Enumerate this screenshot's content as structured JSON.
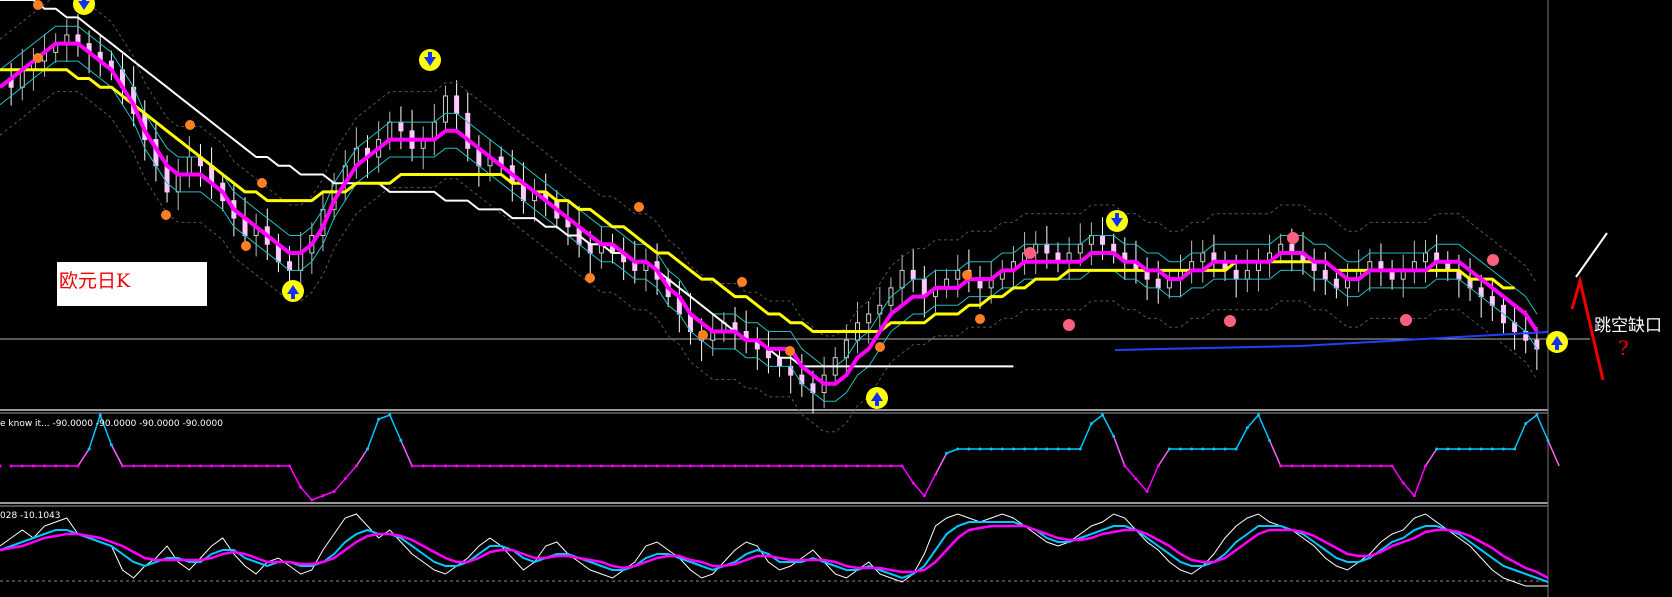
{
  "chart_data": {
    "type": "line",
    "x_count": 140,
    "annotations": {
      "label_box": "欧元日K",
      "gap_label": "跳空缺口",
      "question": "?"
    },
    "subpanel1": {
      "label": "e know it... -90.0000 -90.0000 -90.0000 -90.0000",
      "levels": [
        [
          1,
          -0.2
        ],
        [
          7,
          -0.2
        ],
        [
          8,
          0.2
        ],
        [
          9,
          1
        ],
        [
          10,
          0.3
        ],
        [
          11,
          -0.2
        ],
        [
          26,
          -0.2
        ],
        [
          27,
          -0.7
        ],
        [
          28,
          -1
        ],
        [
          30,
          -0.8
        ],
        [
          31,
          -0.5
        ],
        [
          32,
          -0.2
        ],
        [
          33,
          0.2
        ],
        [
          34,
          0.9
        ],
        [
          35,
          1
        ],
        [
          36,
          0.4
        ],
        [
          37,
          -0.2
        ],
        [
          81,
          -0.2
        ],
        [
          82,
          -0.6
        ],
        [
          83,
          -0.9
        ],
        [
          84,
          -0.4
        ],
        [
          85,
          0.1
        ],
        [
          86,
          0.2
        ],
        [
          97,
          0.2
        ],
        [
          98,
          0.8
        ],
        [
          99,
          1
        ],
        [
          100,
          0.5
        ],
        [
          101,
          -0.2
        ],
        [
          102,
          -0.5
        ],
        [
          103,
          -0.8
        ],
        [
          104,
          -0.2
        ],
        [
          105,
          0.2
        ],
        [
          111,
          0.2
        ],
        [
          112,
          0.7
        ],
        [
          113,
          1
        ],
        [
          114,
          0.4
        ],
        [
          115,
          -0.2
        ],
        [
          125,
          -0.2
        ],
        [
          126,
          -0.6
        ],
        [
          127,
          -0.9
        ],
        [
          128,
          -0.2
        ],
        [
          129,
          0.2
        ],
        [
          136,
          0.2
        ],
        [
          137,
          0.8
        ],
        [
          138,
          1
        ],
        [
          139,
          0.4
        ],
        [
          140,
          -0.2
        ]
      ]
    },
    "subpanel2": {
      "label": "028 -10.1043",
      "series": [
        {
          "values": [
            0.1,
            0.3,
            0.5,
            0.3,
            0.6,
            0.7,
            0.8,
            0.4,
            0.3,
            0.2,
            0.1,
            -0.5,
            -0.7,
            -0.4,
            -0.2,
            0.1,
            -0.3,
            -0.5,
            -0.2,
            0.1,
            0.3,
            -0.1,
            -0.4,
            -0.6,
            -0.3,
            -0.2,
            -0.4,
            -0.6,
            -0.5,
            0.0,
            0.4,
            0.8,
            0.9,
            0.6,
            0.3,
            0.5,
            0.2,
            -0.1,
            -0.3,
            -0.5,
            -0.6,
            -0.4,
            -0.2,
            0.1,
            0.3,
            0.1,
            -0.2,
            -0.5,
            -0.3,
            0.1,
            0.2,
            -0.1,
            -0.3,
            -0.5,
            -0.6,
            -0.7,
            -0.5,
            -0.3,
            0.1,
            0.2,
            0.0,
            -0.2,
            -0.5,
            -0.7,
            -0.6,
            -0.3,
            0.0,
            0.2,
            0.1,
            -0.3,
            -0.5,
            -0.4,
            -0.2,
            0.0,
            -0.3,
            -0.6,
            -0.7,
            -0.5,
            -0.3,
            -0.6,
            -0.7,
            -0.8,
            -0.6,
            -0.1,
            0.6,
            0.8,
            0.9,
            0.8,
            0.7,
            0.8,
            0.9,
            0.8,
            0.6,
            0.4,
            0.2,
            0.1,
            0.2,
            0.4,
            0.6,
            0.7,
            0.9,
            0.8,
            0.5,
            0.2,
            0.0,
            -0.3,
            -0.5,
            -0.6,
            -0.4,
            -0.1,
            0.3,
            0.6,
            0.8,
            0.9,
            0.7,
            0.6,
            0.5,
            0.3,
            0.1,
            -0.2,
            -0.4,
            -0.5,
            -0.3,
            -0.1,
            0.2,
            0.4,
            0.5,
            0.8,
            0.9,
            0.7,
            0.5,
            0.3,
            0.1,
            -0.2,
            -0.5,
            -0.7,
            -0.8,
            -0.9,
            -0.9,
            -0.9
          ]
        },
        {
          "values": [
            0.0,
            0.1,
            0.2,
            0.3,
            0.4,
            0.5,
            0.5,
            0.4,
            0.3,
            0.2,
            0.1,
            -0.1,
            -0.3,
            -0.4,
            -0.3,
            -0.2,
            -0.2,
            -0.3,
            -0.3,
            -0.1,
            0.0,
            0.0,
            -0.2,
            -0.3,
            -0.4,
            -0.3,
            -0.3,
            -0.4,
            -0.4,
            -0.3,
            -0.1,
            0.2,
            0.4,
            0.5,
            0.4,
            0.4,
            0.3,
            0.1,
            -0.1,
            -0.3,
            -0.4,
            -0.4,
            -0.3,
            -0.1,
            0.1,
            0.1,
            0.0,
            -0.2,
            -0.3,
            -0.2,
            -0.1,
            -0.1,
            -0.2,
            -0.3,
            -0.4,
            -0.5,
            -0.5,
            -0.4,
            -0.2,
            -0.1,
            -0.1,
            -0.2,
            -0.3,
            -0.4,
            -0.5,
            -0.4,
            -0.3,
            -0.1,
            0.0,
            -0.1,
            -0.3,
            -0.3,
            -0.3,
            -0.2,
            -0.3,
            -0.4,
            -0.5,
            -0.5,
            -0.4,
            -0.5,
            -0.6,
            -0.7,
            -0.6,
            -0.4,
            0.0,
            0.4,
            0.6,
            0.7,
            0.7,
            0.7,
            0.7,
            0.7,
            0.6,
            0.5,
            0.3,
            0.2,
            0.2,
            0.3,
            0.4,
            0.5,
            0.6,
            0.6,
            0.5,
            0.3,
            0.1,
            -0.1,
            -0.3,
            -0.4,
            -0.4,
            -0.3,
            -0.1,
            0.2,
            0.4,
            0.6,
            0.6,
            0.6,
            0.5,
            0.4,
            0.2,
            0.0,
            -0.2,
            -0.3,
            -0.3,
            -0.2,
            0.0,
            0.2,
            0.3,
            0.5,
            0.6,
            0.6,
            0.5,
            0.4,
            0.2,
            0.0,
            -0.2,
            -0.4,
            -0.5,
            -0.6,
            -0.7,
            -0.8
          ]
        },
        {
          "values": [
            0.0,
            0.05,
            0.1,
            0.2,
            0.3,
            0.35,
            0.4,
            0.4,
            0.35,
            0.3,
            0.2,
            0.1,
            -0.05,
            -0.2,
            -0.25,
            -0.25,
            -0.25,
            -0.25,
            -0.25,
            -0.2,
            -0.1,
            -0.05,
            -0.1,
            -0.2,
            -0.3,
            -0.3,
            -0.3,
            -0.35,
            -0.35,
            -0.3,
            -0.2,
            0.0,
            0.2,
            0.35,
            0.4,
            0.4,
            0.35,
            0.25,
            0.1,
            -0.05,
            -0.2,
            -0.3,
            -0.3,
            -0.2,
            -0.05,
            0.0,
            0.0,
            -0.1,
            -0.2,
            -0.2,
            -0.15,
            -0.15,
            -0.2,
            -0.25,
            -0.3,
            -0.4,
            -0.45,
            -0.4,
            -0.3,
            -0.2,
            -0.15,
            -0.15,
            -0.25,
            -0.3,
            -0.4,
            -0.4,
            -0.35,
            -0.25,
            -0.15,
            -0.15,
            -0.2,
            -0.25,
            -0.25,
            -0.25,
            -0.25,
            -0.3,
            -0.4,
            -0.45,
            -0.45,
            -0.45,
            -0.5,
            -0.55,
            -0.55,
            -0.5,
            -0.3,
            0.0,
            0.3,
            0.5,
            0.55,
            0.6,
            0.6,
            0.6,
            0.6,
            0.5,
            0.4,
            0.3,
            0.25,
            0.25,
            0.3,
            0.4,
            0.45,
            0.5,
            0.5,
            0.4,
            0.25,
            0.1,
            -0.1,
            -0.25,
            -0.3,
            -0.3,
            -0.2,
            0.0,
            0.2,
            0.4,
            0.5,
            0.5,
            0.5,
            0.45,
            0.35,
            0.2,
            0.05,
            -0.1,
            -0.15,
            -0.15,
            -0.05,
            0.1,
            0.2,
            0.3,
            0.45,
            0.5,
            0.5,
            0.45,
            0.35,
            0.2,
            0.05,
            -0.15,
            -0.3,
            -0.45,
            -0.55,
            -0.7
          ]
        }
      ]
    },
    "main": {
      "close": [
        1.41,
        1.4,
        1.42,
        1.43,
        1.44,
        1.45,
        1.46,
        1.45,
        1.44,
        1.43,
        1.42,
        1.4,
        1.37,
        1.34,
        1.31,
        1.28,
        1.3,
        1.32,
        1.31,
        1.29,
        1.27,
        1.25,
        1.23,
        1.24,
        1.22,
        1.2,
        1.19,
        1.21,
        1.23,
        1.26,
        1.29,
        1.31,
        1.33,
        1.32,
        1.34,
        1.36,
        1.35,
        1.33,
        1.34,
        1.36,
        1.39,
        1.37,
        1.33,
        1.31,
        1.32,
        1.31,
        1.29,
        1.27,
        1.28,
        1.27,
        1.25,
        1.24,
        1.22,
        1.21,
        1.22,
        1.21,
        1.2,
        1.19,
        1.2,
        1.18,
        1.16,
        1.14,
        1.12,
        1.11,
        1.12,
        1.13,
        1.12,
        1.11,
        1.1,
        1.09,
        1.08,
        1.07,
        1.06,
        1.05,
        1.07,
        1.09,
        1.11,
        1.13,
        1.14,
        1.15,
        1.17,
        1.19,
        1.18,
        1.16,
        1.17,
        1.18,
        1.19,
        1.18,
        1.17,
        1.18,
        1.19,
        1.2,
        1.21,
        1.22,
        1.21,
        1.2,
        1.21,
        1.22,
        1.23,
        1.22,
        1.21,
        1.2,
        1.19,
        1.18,
        1.17,
        1.18,
        1.19,
        1.2,
        1.21,
        1.2,
        1.19,
        1.18,
        1.19,
        1.2,
        1.21,
        1.22,
        1.21,
        1.2,
        1.19,
        1.18,
        1.17,
        1.18,
        1.19,
        1.2,
        1.19,
        1.18,
        1.19,
        1.2,
        1.21,
        1.2,
        1.19,
        1.18,
        1.17,
        1.16,
        1.15,
        1.13,
        1.12,
        1.11,
        1.1
      ],
      "ma_magenta": [
        1.4,
        1.41,
        1.42,
        1.43,
        1.44,
        1.45,
        1.45,
        1.45,
        1.44,
        1.43,
        1.42,
        1.4,
        1.38,
        1.35,
        1.33,
        1.31,
        1.3,
        1.3,
        1.3,
        1.29,
        1.28,
        1.26,
        1.25,
        1.24,
        1.23,
        1.22,
        1.21,
        1.21,
        1.22,
        1.24,
        1.27,
        1.29,
        1.31,
        1.32,
        1.33,
        1.34,
        1.34,
        1.34,
        1.34,
        1.34,
        1.35,
        1.35,
        1.34,
        1.33,
        1.32,
        1.31,
        1.3,
        1.29,
        1.28,
        1.27,
        1.26,
        1.25,
        1.24,
        1.23,
        1.22,
        1.22,
        1.21,
        1.2,
        1.2,
        1.19,
        1.17,
        1.16,
        1.14,
        1.13,
        1.12,
        1.12,
        1.12,
        1.11,
        1.11,
        1.1,
        1.1,
        1.1,
        1.08,
        1.07,
        1.06,
        1.06,
        1.07,
        1.09,
        1.1,
        1.12,
        1.14,
        1.15,
        1.16,
        1.16,
        1.17,
        1.17,
        1.17,
        1.18,
        1.18,
        1.18,
        1.19,
        1.19,
        1.2,
        1.2,
        1.2,
        1.2,
        1.2,
        1.2,
        1.21,
        1.21,
        1.21,
        1.2,
        1.2,
        1.19,
        1.19,
        1.18,
        1.18,
        1.19,
        1.19,
        1.2,
        1.2,
        1.2,
        1.2,
        1.2,
        1.2,
        1.21,
        1.21,
        1.21,
        1.2,
        1.2,
        1.19,
        1.18,
        1.18,
        1.19,
        1.19,
        1.19,
        1.19,
        1.19,
        1.19,
        1.2,
        1.2,
        1.2,
        1.19,
        1.18,
        1.17,
        1.16,
        1.15,
        1.14,
        1.12
      ],
      "ma_yellow": [
        1.42,
        1.42,
        1.42,
        1.42,
        1.42,
        1.42,
        1.42,
        1.41,
        1.41,
        1.4,
        1.4,
        1.39,
        1.38,
        1.37,
        1.36,
        1.35,
        1.34,
        1.33,
        1.32,
        1.31,
        1.3,
        1.29,
        1.28,
        1.28,
        1.27,
        1.27,
        1.27,
        1.27,
        1.27,
        1.28,
        1.28,
        1.28,
        1.29,
        1.29,
        1.29,
        1.29,
        1.3,
        1.3,
        1.3,
        1.3,
        1.3,
        1.3,
        1.3,
        1.3,
        1.3,
        1.3,
        1.29,
        1.29,
        1.28,
        1.28,
        1.27,
        1.27,
        1.26,
        1.26,
        1.25,
        1.24,
        1.24,
        1.23,
        1.22,
        1.21,
        1.21,
        1.2,
        1.19,
        1.18,
        1.18,
        1.17,
        1.16,
        1.16,
        1.15,
        1.14,
        1.14,
        1.13,
        1.13,
        1.12,
        1.12,
        1.12,
        1.12,
        1.12,
        1.12,
        1.12,
        1.13,
        1.13,
        1.13,
        1.13,
        1.14,
        1.14,
        1.14,
        1.15,
        1.15,
        1.16,
        1.16,
        1.17,
        1.17,
        1.18,
        1.18,
        1.18,
        1.19,
        1.19,
        1.19,
        1.19,
        1.19,
        1.19,
        1.19,
        1.19,
        1.19,
        1.19,
        1.19,
        1.19,
        1.19,
        1.19,
        1.19,
        1.2,
        1.2,
        1.2,
        1.2,
        1.2,
        1.2,
        1.2,
        1.2,
        1.2,
        1.19,
        1.19,
        1.19,
        1.19,
        1.19,
        1.19,
        1.19,
        1.19,
        1.19,
        1.19,
        1.19,
        1.19,
        1.18,
        1.18,
        1.18,
        1.17,
        1.17
      ],
      "ma_white": [
        1.5,
        1.5,
        1.5,
        1.5,
        1.49,
        1.49,
        1.48,
        1.48,
        1.47,
        1.46,
        1.45,
        1.44,
        1.43,
        1.42,
        1.41,
        1.4,
        1.39,
        1.38,
        1.37,
        1.36,
        1.35,
        1.34,
        1.33,
        1.32,
        1.32,
        1.31,
        1.31,
        1.3,
        1.3,
        1.3,
        1.29,
        1.29,
        1.29,
        1.29,
        1.29,
        1.28,
        1.28,
        1.28,
        1.28,
        1.28,
        1.27,
        1.27,
        1.27,
        1.26,
        1.26,
        1.26,
        1.25,
        1.25,
        1.25,
        1.24,
        1.24,
        1.23,
        1.23,
        1.22,
        1.22,
        1.21,
        1.21,
        1.2,
        1.2,
        1.19,
        1.18,
        1.17,
        1.16,
        1.15,
        1.14,
        1.13,
        1.12,
        1.11,
        1.11,
        1.1,
        1.09,
        1.09,
        1.08,
        1.08,
        1.08,
        1.08,
        1.08,
        1.08,
        1.08,
        1.08,
        1.08,
        1.08,
        1.08,
        1.08,
        1.08,
        1.08,
        1.08,
        1.08,
        1.08,
        1.08,
        1.08,
        1.08
      ]
    }
  }
}
